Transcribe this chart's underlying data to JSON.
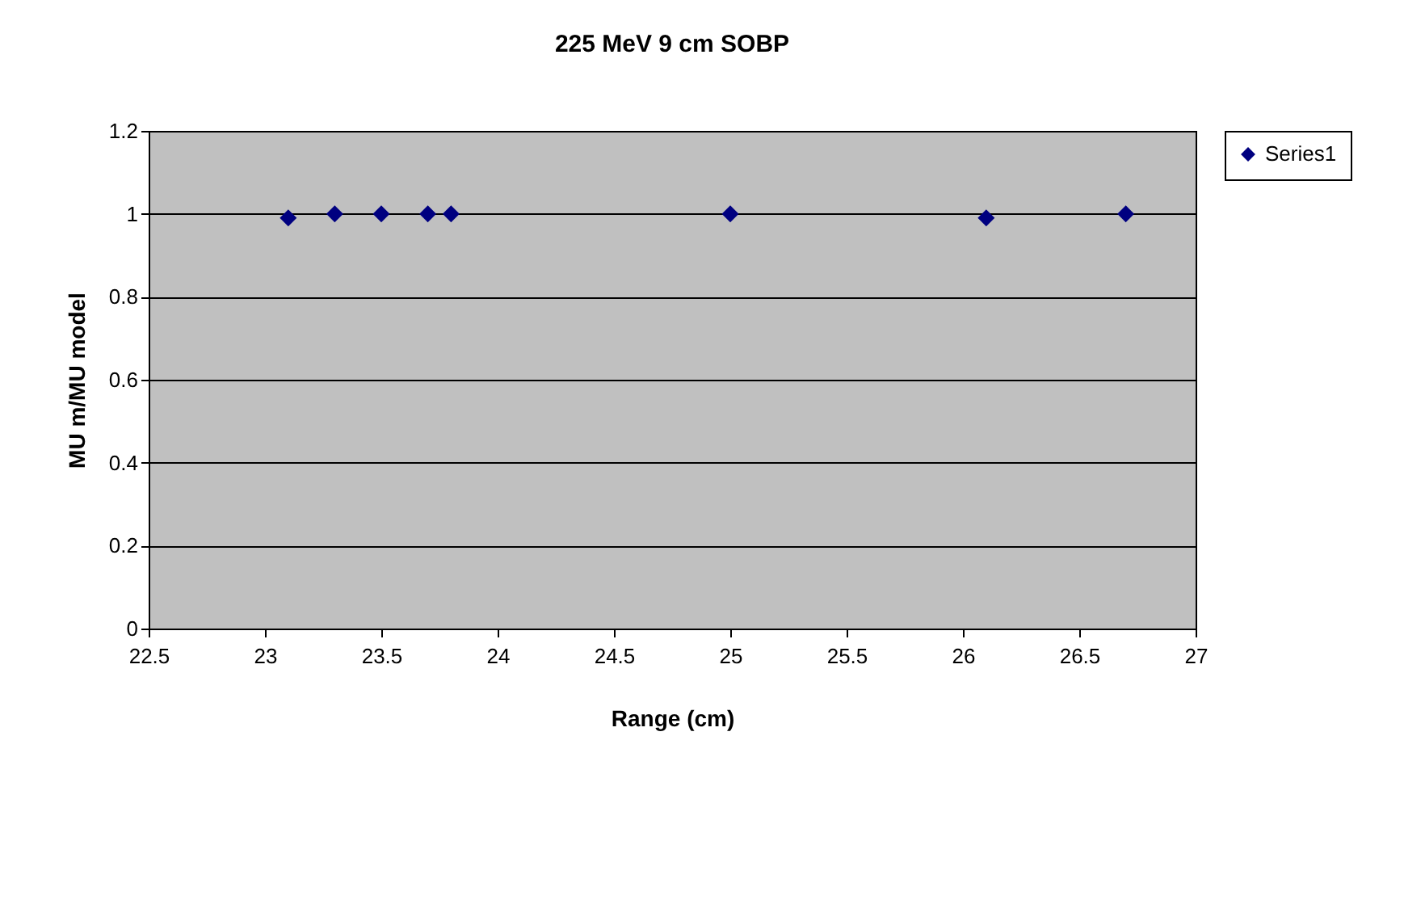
{
  "chart_data": {
    "type": "scatter",
    "title": "225 MeV 9 cm SOBP",
    "xlabel": "Range (cm)",
    "ylabel": "MU m/MU model",
    "x": [
      23.1,
      23.3,
      23.5,
      23.7,
      23.8,
      25.0,
      26.1,
      26.7
    ],
    "series": [
      {
        "name": "Series1",
        "color": "#000080",
        "values": [
          0.99,
          1.0,
          1.0,
          1.0,
          1.0,
          1.0,
          0.99,
          1.0
        ]
      }
    ],
    "xlim": [
      22.5,
      27
    ],
    "xticks": [
      22.5,
      23,
      23.5,
      24,
      24.5,
      25,
      25.5,
      26,
      26.5,
      27
    ],
    "ylim": [
      0,
      1.2
    ],
    "yticks": [
      0,
      0.2,
      0.4,
      0.6,
      0.8,
      1,
      1.2
    ],
    "grid": "y",
    "legend": "right",
    "marker": "diamond"
  }
}
